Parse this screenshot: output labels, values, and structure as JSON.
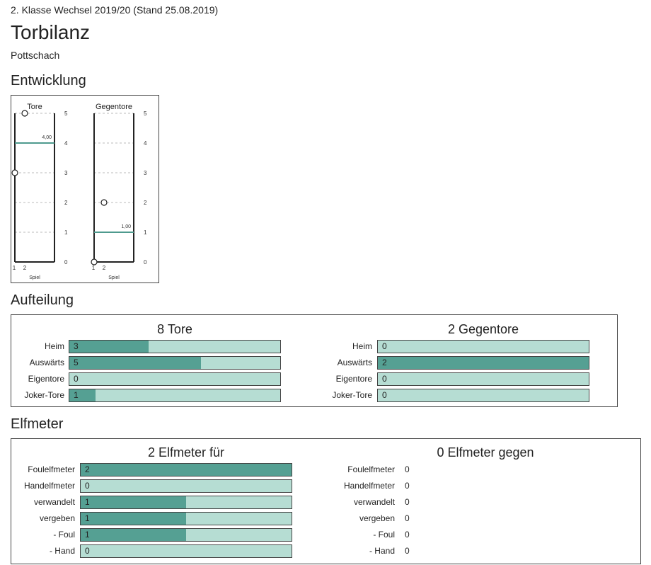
{
  "header": {
    "subtitle": "2. Klasse Wechsel 2019/20 (Stand 25.08.2019)",
    "title": "Torbilanz",
    "team": "Pottschach"
  },
  "sections": {
    "entwicklung": "Entwicklung",
    "aufteilung": "Aufteilung",
    "elfmeter": "Elfmeter"
  },
  "development": {
    "charts": [
      {
        "title": "Tore",
        "ymax": 5,
        "yticks": [
          "0",
          "1",
          "2",
          "3",
          "4",
          "5"
        ],
        "xticks": [
          "1",
          "2"
        ],
        "xlabel": "Spiel",
        "points": [
          3,
          5
        ],
        "avg": 4.0,
        "avg_label": "4,00"
      },
      {
        "title": "Gegentore",
        "ymax": 5,
        "yticks": [
          "0",
          "1",
          "2",
          "3",
          "4",
          "5"
        ],
        "xticks": [
          "1",
          "2"
        ],
        "xlabel": "Spiel",
        "points": [
          0,
          2
        ],
        "avg": 1.0,
        "avg_label": "1,00"
      }
    ]
  },
  "aufteilung": {
    "left": {
      "head": "8 Tore",
      "max": 8,
      "rows": [
        {
          "label": "Heim",
          "value": 3,
          "text": "3"
        },
        {
          "label": "Auswärts",
          "value": 5,
          "text": "5"
        },
        {
          "label": "Eigentore",
          "value": 0,
          "text": "0"
        },
        {
          "label": "Joker-Tore",
          "value": 1,
          "text": "1"
        }
      ]
    },
    "right": {
      "head": "2 Gegentore",
      "max": 2,
      "rows": [
        {
          "label": "Heim",
          "value": 0,
          "text": "0"
        },
        {
          "label": "Auswärts",
          "value": 2,
          "text": "2"
        },
        {
          "label": "Eigentore",
          "value": 0,
          "text": "0"
        },
        {
          "label": "Joker-Tore",
          "value": 0,
          "text": "0"
        }
      ]
    }
  },
  "elfmeter": {
    "left": {
      "head": "2 Elfmeter für",
      "max": 2,
      "rows": [
        {
          "label": "Foulelfmeter",
          "value": 2,
          "text": "2"
        },
        {
          "label": "Handelfmeter",
          "value": 0,
          "text": "0"
        },
        {
          "label": "verwandelt",
          "value": 1,
          "text": "1"
        },
        {
          "label": "vergeben",
          "value": 1,
          "text": "1"
        },
        {
          "label": "- Foul",
          "value": 1,
          "text": "1"
        },
        {
          "label": "- Hand",
          "value": 0,
          "text": "0"
        }
      ]
    },
    "right": {
      "head": "0 Elfmeter gegen",
      "rows": [
        {
          "label": "Foulelfmeter",
          "text": "0"
        },
        {
          "label": "Handelfmeter",
          "text": "0"
        },
        {
          "label": "verwandelt",
          "text": "0"
        },
        {
          "label": "vergeben",
          "text": "0"
        },
        {
          "label": "- Foul",
          "text": "0"
        },
        {
          "label": "- Hand",
          "text": "0"
        }
      ]
    }
  },
  "colors": {
    "bar_bg": "#b6ddd3",
    "bar_fill": "#55a093",
    "avg_line": "#4e9a8e"
  }
}
